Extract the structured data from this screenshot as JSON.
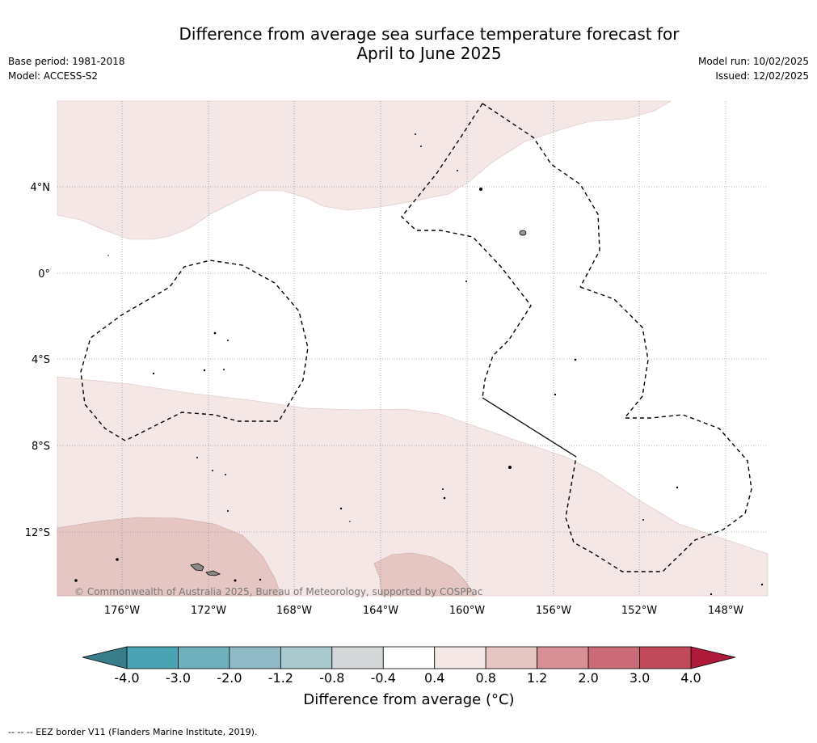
{
  "title_line1": "Difference from average sea surface temperature forecast for",
  "title_line2": "April to June 2025",
  "base_period": "Base period: 1981-2018",
  "model": "Model: ACCESS-S2",
  "model_run": "Model run: 10/02/2025",
  "issued": "Issued: 12/02/2025",
  "copyright": "© Commonwealth of Australia 2025, Bureau of Meteorology, supported by COSPPac",
  "lat_labels": [
    "4°N",
    "0°",
    "4°S",
    "8°S",
    "12°S"
  ],
  "lon_labels": [
    "176°W",
    "172°W",
    "168°W",
    "164°W",
    "160°W",
    "156°W",
    "152°W",
    "148°W"
  ],
  "colorbar": {
    "title": "Difference from average (°C)",
    "ticks": [
      "-4.0",
      "-3.0",
      "-2.0",
      "-1.2",
      "-0.8",
      "-0.4",
      "0.4",
      "0.8",
      "1.2",
      "2.0",
      "3.0",
      "4.0"
    ],
    "colors": [
      "#4aa3b3",
      "#6fb0bd",
      "#8fbac6",
      "#a9c9cf",
      "#d4d8d8",
      "#ffffff",
      "#f4e7e6",
      "#e5c6c2",
      "#d88f96",
      "#cb6b77",
      "#c04a5a"
    ],
    "low_extend_color": "#3a7d8a",
    "high_extend_color": "#b01a3a"
  },
  "footer": "--  --  -- EEZ border V11 (Flanders Marine Institute, 2019)."
}
